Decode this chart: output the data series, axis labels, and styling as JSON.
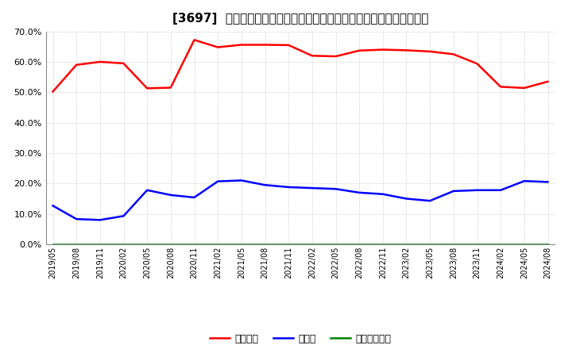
{
  "title": "[3697]  自己資本、のれん、繰延税金資産の総資産に対する比率の推移",
  "background_color": "#ffffff",
  "grid_color": "#aaaaaa",
  "ylim": [
    0.0,
    0.7
  ],
  "yticks": [
    0.0,
    0.1,
    0.2,
    0.3,
    0.4,
    0.5,
    0.6,
    0.7
  ],
  "x_labels": [
    "2019/05",
    "2019/08",
    "2019/11",
    "2020/02",
    "2020/05",
    "2020/08",
    "2020/11",
    "2021/02",
    "2021/05",
    "2021/08",
    "2021/11",
    "2022/02",
    "2022/05",
    "2022/08",
    "2022/11",
    "2023/02",
    "2023/05",
    "2023/08",
    "2023/11",
    "2024/02",
    "2024/05",
    "2024/08"
  ],
  "series": [
    {
      "key": "jiko_shihon",
      "label": "自己資本",
      "color": "#ff0000",
      "linewidth": 1.8,
      "values": [
        0.502,
        0.59,
        0.6,
        0.595,
        0.513,
        0.515,
        0.672,
        0.648,
        0.656,
        0.656,
        0.655,
        0.62,
        0.618,
        0.637,
        0.64,
        0.638,
        0.634,
        0.625,
        0.594,
        0.518,
        0.514,
        0.535
      ]
    },
    {
      "key": "noren",
      "label": "のれん",
      "color": "#0000ff",
      "linewidth": 1.8,
      "values": [
        0.127,
        0.083,
        0.08,
        0.093,
        0.178,
        0.162,
        0.154,
        0.207,
        0.21,
        0.195,
        0.188,
        0.185,
        0.182,
        0.17,
        0.165,
        0.15,
        0.143,
        0.175,
        0.178,
        0.178,
        0.208,
        0.205
      ]
    },
    {
      "key": "kurinobe",
      "label": "繰延税金資産",
      "color": "#008000",
      "linewidth": 1.8,
      "values": [
        0.001,
        0.001,
        0.001,
        0.001,
        0.001,
        0.001,
        0.001,
        0.001,
        0.001,
        0.001,
        0.001,
        0.001,
        0.001,
        0.001,
        0.001,
        0.001,
        0.001,
        0.001,
        0.001,
        0.001,
        0.001,
        0.001
      ]
    }
  ]
}
